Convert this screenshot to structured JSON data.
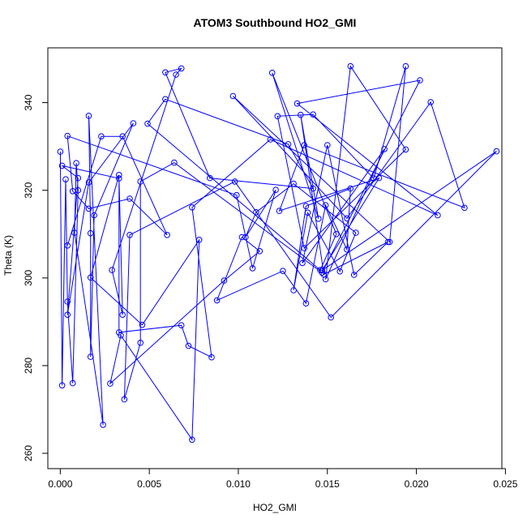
{
  "chart_data": {
    "type": "line",
    "title": "ATOM3 Southbound HO2_GMI",
    "xlabel": "HO2_GMI",
    "ylabel": "Theta (K)",
    "xlim": [
      -0.0007,
      0.0248
    ],
    "ylim": [
      256.5,
      352.5
    ],
    "xticks": [
      0.0,
      0.005,
      0.01,
      0.015,
      0.02,
      0.025
    ],
    "xtick_labels": [
      "0.000",
      "0.005",
      "0.010",
      "0.015",
      "0.020",
      "0.025"
    ],
    "yticks": [
      260,
      280,
      300,
      320,
      340
    ],
    "ytick_labels": [
      "260",
      "280",
      "300",
      "320",
      "340"
    ],
    "grid": false,
    "legend": "none",
    "series_color": "#0000ff",
    "markers": "open-circle",
    "series": [
      {
        "x": [
          0.0,
          0.0001,
          0.0003,
          0.0004,
          0.0007,
          0.001,
          0.0009,
          0.0008,
          0.0024,
          0.0016,
          0.0017,
          0.0017,
          0.0019,
          0.0041,
          0.0016,
          0.0004,
          0.001,
          0.0001,
          0.0033,
          0.0035,
          0.0029,
          0.0065,
          0.0068,
          0.0059,
          0.0084,
          0.0142,
          0.0128,
          0.0059,
          0.0049,
          0.0146,
          0.0155,
          0.0119,
          0.0145,
          0.0135,
          0.0148,
          0.0184,
          0.0165,
          0.015,
          0.0136,
          0.0182,
          0.0149,
          0.0163,
          0.0194,
          0.0137,
          0.0122,
          0.0142,
          0.0176,
          0.0194,
          0.0185,
          0.0097,
          0.0161,
          0.0208,
          0.0227,
          0.0137,
          0.0123,
          0.0179,
          0.0147,
          0.0245,
          0.0152,
          0.0098,
          0.0039,
          0.0036,
          0.0045,
          0.0045,
          0.0064,
          0.0147,
          0.0202,
          0.0133,
          0.0212,
          0.0118,
          0.0074,
          0.0085,
          0.0072,
          0.0068,
          0.0033,
          0.0033,
          0.0017,
          0.0046,
          0.0078,
          0.0074,
          0.0034,
          0.0028,
          0.0092,
          0.0112,
          0.0102,
          0.0088,
          0.0125,
          0.0138,
          0.0149,
          0.0161,
          0.0163,
          0.0138,
          0.0131,
          0.0139,
          0.0157,
          0.0166,
          0.0131,
          0.011,
          0.0104,
          0.0121,
          0.0108,
          0.0099,
          0.0004,
          0.0007,
          0.0016,
          0.0039,
          0.006,
          0.0035,
          0.0023,
          0.0004
        ],
        "y": [
          328.8,
          275.5,
          322.5,
          294.6,
          276.0,
          320.0,
          326.2,
          310.3,
          266.5,
          337.0,
          310.2,
          282.0,
          314.3,
          335.3,
          321.8,
          291.6,
          322.8,
          325.6,
          322.7,
          291.6,
          301.8,
          346.4,
          347.8,
          346.9,
          322.8,
          320.4,
          330.5,
          340.8,
          335.2,
          301.8,
          310.0,
          346.8,
          313.5,
          337.2,
          300.8,
          308.2,
          300.7,
          330.3,
          303.4,
          329.4,
          299.7,
          348.3,
          329.3,
          306.8,
          336.9,
          337.3,
          322.7,
          348.3,
          308.2,
          341.5,
          313.6,
          340.1,
          316.0,
          330.3,
          315.3,
          322.8,
          301.7,
          328.9,
          291.0,
          322.0,
          309.8,
          272.3,
          285.2,
          322.0,
          326.3,
          301.2,
          345.1,
          339.8,
          314.3,
          331.6,
          316.1,
          281.9,
          284.5,
          289.2,
          287.6,
          323.5,
          300.1,
          289.3,
          308.7,
          263.1,
          286.9,
          275.9,
          299.4,
          306.1,
          309.3,
          294.9,
          301.6,
          294.2,
          316.6,
          306.5,
          320.4,
          316.4,
          297.2,
          314.9,
          301.5,
          310.3,
          321.5,
          315.0,
          309.3,
          320.1,
          302.2,
          318.9,
          332.4,
          319.8,
          315.8,
          318.1,
          309.8,
          332.3,
          332.3,
          307.4
        ]
      }
    ]
  }
}
